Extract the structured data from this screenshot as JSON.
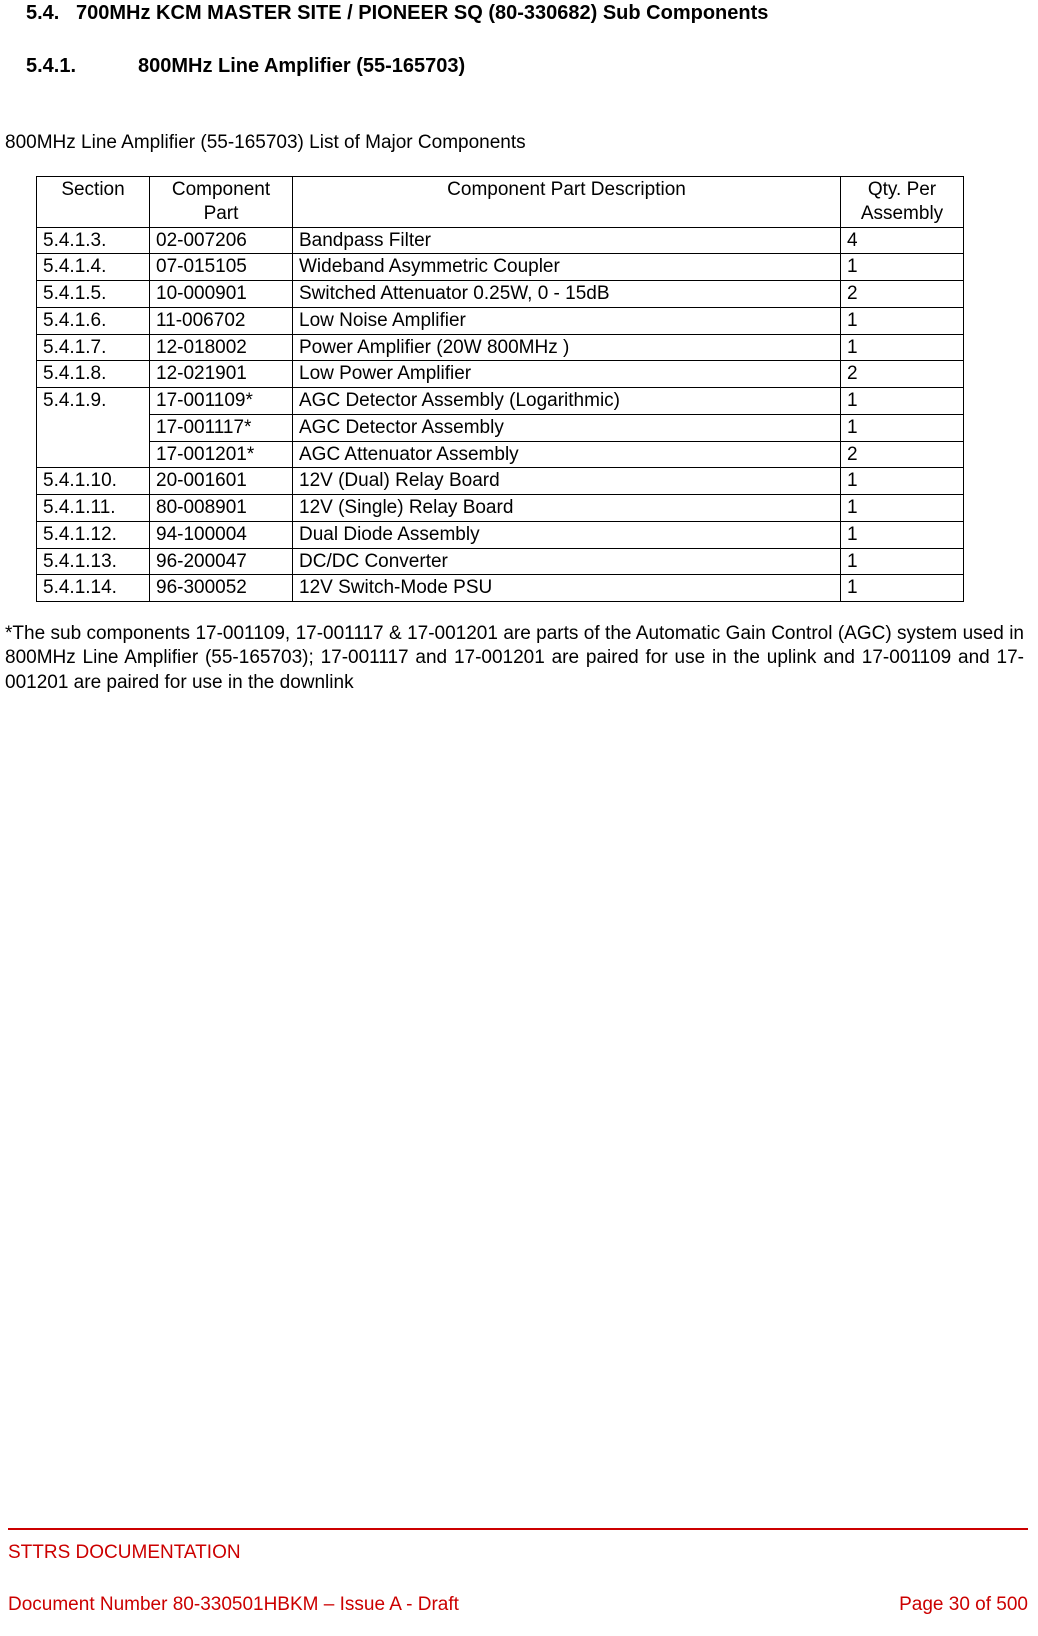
{
  "headings": {
    "h1_num": "5.4.",
    "h1_text": "700MHz KCM MASTER SITE / PIONEER SQ (80-330682) Sub Components",
    "h2_num": "5.4.1.",
    "h2_text": "800MHz Line Amplifier (55-165703)"
  },
  "subtitle": "800MHz Line Amplifier (55-165703) List of Major Components",
  "table": {
    "headers": {
      "section": "Section",
      "part": "Component Part",
      "desc": "Component Part Description",
      "qty": "Qty. Per Assembly"
    },
    "rows": [
      {
        "section": "5.4.1.3.",
        "part": "02-007206",
        "desc": "Bandpass Filter",
        "qty": "4",
        "rowspan": 1
      },
      {
        "section": "5.4.1.4.",
        "part": "07-015105",
        "desc": "Wideband Asymmetric Coupler",
        "qty": "1",
        "rowspan": 1
      },
      {
        "section": "5.4.1.5.",
        "part": "10-000901",
        "desc": "Switched Attenuator 0.25W, 0 - 15dB",
        "qty": "2",
        "rowspan": 1
      },
      {
        "section": "5.4.1.6.",
        "part": "11-006702",
        "desc": "Low Noise Amplifier",
        "qty": "1",
        "rowspan": 1
      },
      {
        "section": "5.4.1.7.",
        "part": "12-018002",
        "desc": "Power Amplifier (20W 800MHz )",
        "qty": "1",
        "rowspan": 1
      },
      {
        "section": "5.4.1.8.",
        "part": "12-021901",
        "desc": "Low Power Amplifier",
        "qty": "2",
        "rowspan": 1
      },
      {
        "section": "5.4.1.9.",
        "part": "17-001109*",
        "desc": "AGC Detector Assembly (Logarithmic)",
        "qty": "1",
        "rowspan": 3
      },
      {
        "section": "",
        "part": "17-001117*",
        "desc": "AGC Detector Assembly",
        "qty": "1",
        "rowspan": 0
      },
      {
        "section": "",
        "part": "17-001201*",
        "desc": "AGC Attenuator Assembly",
        "qty": "2",
        "rowspan": 0
      },
      {
        "section": "5.4.1.10.",
        "part": "20-001601",
        "desc": "12V (Dual) Relay Board",
        "qty": "1",
        "rowspan": 1
      },
      {
        "section": "5.4.1.11.",
        "part": "80-008901",
        "desc": "12V (Single) Relay Board",
        "qty": "1",
        "rowspan": 1
      },
      {
        "section": "5.4.1.12.",
        "part": "94-100004",
        "desc": "Dual Diode Assembly",
        "qty": "1",
        "rowspan": 1
      },
      {
        "section": "5.4.1.13.",
        "part": "96-200047",
        "desc": "DC/DC Converter",
        "qty": "1",
        "rowspan": 1
      },
      {
        "section": "5.4.1.14.",
        "part": "96-300052",
        "desc": "12V Switch-Mode PSU",
        "qty": "1",
        "rowspan": 1
      }
    ]
  },
  "note": "*The sub components 17-001109, 17-001117 & 17-001201 are parts of the Automatic Gain Control (AGC) system used in 800MHz Line Amplifier (55-165703); 17-001117 and 17-001201 are paired for use in the uplink and 17-001109 and 17-001201 are paired for use in the downlink",
  "footer": {
    "line1": "STTRS DOCUMENTATION",
    "doc": "Document Number 80-330501HBKM – Issue A - Draft",
    "page": "Page 30 of 500",
    "rule_color": "#cc0000",
    "text_color": "#cc0000"
  }
}
